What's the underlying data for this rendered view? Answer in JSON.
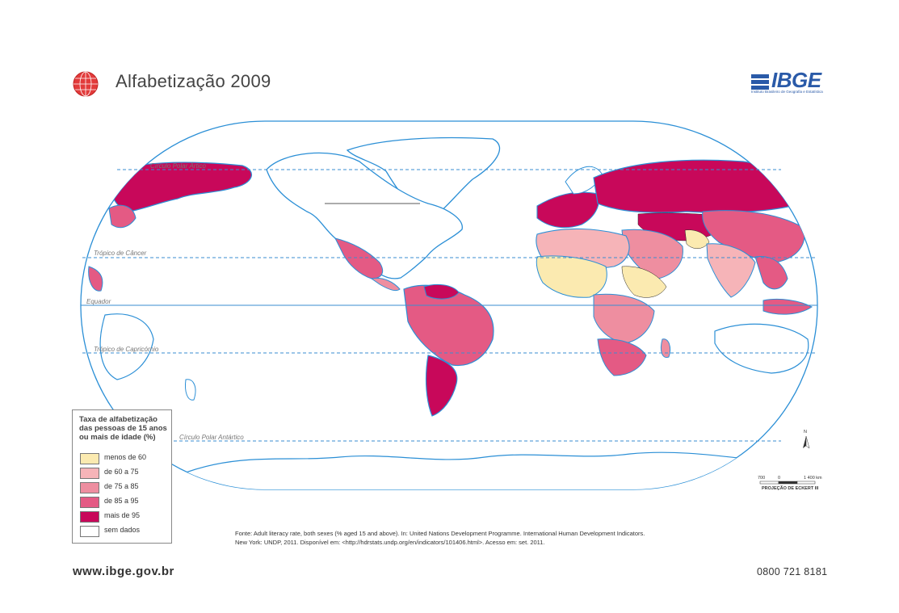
{
  "title": "Alfabetização  2009",
  "logo": {
    "text": "IBGE",
    "subtitle": "Instituto Brasileiro de Geografia e Estatística"
  },
  "map": {
    "lines": {
      "arctic": "Círculo Polar Ártico",
      "cancer": "Trópico de Câncer",
      "equator": "Equador",
      "capricorn": "Trópico de Capricórnio",
      "antarctic": "Círculo Polar Antártico"
    },
    "north_label": "N",
    "scale": {
      "left": "700",
      "zero": "0",
      "right": "1 400 km",
      "projection": "PROJEÇÃO DE ECKERT III"
    }
  },
  "legend": {
    "title": "Taxa de alfabetização das pessoas de 15 anos ou mais de idade (%)",
    "items": [
      {
        "label": "menos de 60",
        "color": "#fbeab0"
      },
      {
        "label": "de 60 a 75",
        "color": "#f6b4b8"
      },
      {
        "label": "de 75 a 85",
        "color": "#ee8ea0"
      },
      {
        "label": "de 85 a 95",
        "color": "#e45a84"
      },
      {
        "label": "mais de 95",
        "color": "#c8085a"
      },
      {
        "label": "sem dados",
        "color": "#ffffff"
      }
    ]
  },
  "source": {
    "line1": "Fonte: Adult literacy rate, both sexes (% aged 15 and above). In: United Nations Development Programme. International Human Development Indicators.",
    "line2": "New York: UNDP, 2011. Disponível em: <http://hdrstats.undp.org/en/indicators/101406.html>. Acesso em: set. 2011."
  },
  "footer": {
    "website": "www.ibge.gov.br",
    "phone": "0800 721 8181"
  }
}
